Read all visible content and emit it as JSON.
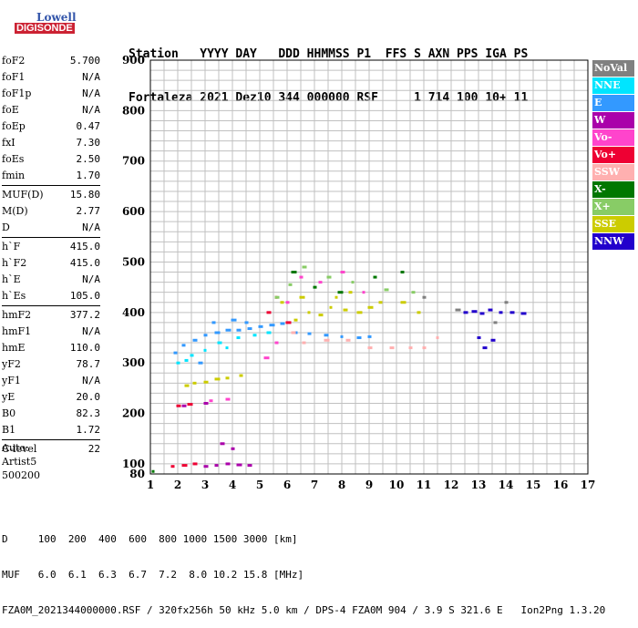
{
  "logo": {
    "line1": "Lowell",
    "line2": "DIGISONDE"
  },
  "header": {
    "row1": "Station   YYYY DAY   DDD HHMMSS P1  FFS S AXN PPS IGA PS",
    "row2": "Fortaleza 2021 Dez10 344 000000 RSF     1 714 100 10+ 11"
  },
  "params": [
    [
      {
        "label": "foF2",
        "value": "5.700"
      },
      {
        "label": "foF1",
        "value": "N/A"
      },
      {
        "label": "foF1p",
        "value": "N/A"
      },
      {
        "label": "foE",
        "value": "N/A"
      },
      {
        "label": "foEp",
        "value": "0.47"
      },
      {
        "label": "fxI",
        "value": "7.30"
      },
      {
        "label": "foEs",
        "value": "2.50"
      },
      {
        "label": "fmin",
        "value": "1.70"
      }
    ],
    [
      {
        "label": "MUF(D)",
        "value": "15.80"
      },
      {
        "label": "M(D)",
        "value": "2.77"
      },
      {
        "label": "D",
        "value": "N/A"
      }
    ],
    [
      {
        "label": "h`F",
        "value": "415.0"
      },
      {
        "label": "h`F2",
        "value": "415.0"
      },
      {
        "label": "h`E",
        "value": "N/A"
      },
      {
        "label": "h`Es",
        "value": "105.0"
      }
    ],
    [
      {
        "label": "hmF2",
        "value": "377.2"
      },
      {
        "label": "hmF1",
        "value": "N/A"
      },
      {
        "label": "hmE",
        "value": "110.0"
      },
      {
        "label": "yF2",
        "value": "78.7"
      },
      {
        "label": "yF1",
        "value": "N/A"
      },
      {
        "label": "yE",
        "value": "20.0"
      },
      {
        "label": "B0",
        "value": "82.3"
      },
      {
        "label": "B1",
        "value": "1.72"
      }
    ],
    [
      {
        "label": "C-level",
        "value": "22"
      }
    ]
  ],
  "auto": {
    "line1": "Auto:",
    "line2": "Artist5",
    "line3": "500200"
  },
  "footer": {
    "line1": "D     100  200  400  600  800 1000 1500 3000 [km]",
    "line2": "MUF   6.0  6.1  6.3  6.7  7.2  8.0 10.2 15.8 [MHz]",
    "line3": "FZA0M_2021344000000.RSF / 320fx256h 50 kHz 5.0 km / DPS-4 FZA0M 904 / 3.9 S 321.6 E   Ion2Png 1.3.20"
  },
  "legend": [
    {
      "label": "NoVal",
      "color": "#808080"
    },
    {
      "label": "NNE",
      "color": "#00e5ff"
    },
    {
      "label": "E",
      "color": "#3399ff"
    },
    {
      "label": "W",
      "color": "#aa00aa"
    },
    {
      "label": "Vo-",
      "color": "#ff44cc"
    },
    {
      "label": "Vo+",
      "color": "#ee0033"
    },
    {
      "label": "SSW",
      "color": "#ffb0b0"
    },
    {
      "label": "X-",
      "color": "#007700"
    },
    {
      "label": "X+",
      "color": "#88cc66"
    },
    {
      "label": "SSE",
      "color": "#cccc00"
    },
    {
      "label": "NNW",
      "color": "#2200cc"
    }
  ],
  "chart_data": {
    "type": "scatter",
    "title": "",
    "xlabel": "",
    "ylabel": "",
    "xlim": [
      1,
      17
    ],
    "ylim": [
      80,
      900
    ],
    "x_ticks": [
      "1",
      "2",
      "3",
      "4",
      "5",
      "6",
      "7",
      "8",
      "9",
      "10",
      "11",
      "12",
      "13",
      "14",
      "15",
      "16",
      "17"
    ],
    "y_ticks": [
      "100",
      "200",
      "300",
      "400",
      "500",
      "600",
      "700",
      "800",
      "900"
    ],
    "grid": true,
    "legend_position": "right",
    "series": [
      {
        "name": "E",
        "color": "#3399ff",
        "points": [
          [
            1.9,
            320
          ],
          [
            2.2,
            335
          ],
          [
            2.6,
            345
          ],
          [
            3.0,
            355
          ],
          [
            3.4,
            360
          ],
          [
            3.8,
            365
          ],
          [
            4.2,
            365
          ],
          [
            4.6,
            368
          ],
          [
            5.0,
            372
          ],
          [
            5.4,
            375
          ],
          [
            5.8,
            378
          ],
          [
            6.3,
            360
          ],
          [
            6.8,
            358
          ],
          [
            7.4,
            355
          ],
          [
            8.0,
            352
          ],
          [
            8.6,
            350
          ],
          [
            9.0,
            352
          ],
          [
            3.3,
            380
          ],
          [
            4.0,
            385
          ],
          [
            4.5,
            380
          ],
          [
            2.8,
            300
          ]
        ]
      },
      {
        "name": "NNE",
        "color": "#00e5ff",
        "points": [
          [
            2.0,
            300
          ],
          [
            2.5,
            315
          ],
          [
            3.0,
            325
          ],
          [
            3.5,
            340
          ],
          [
            4.2,
            350
          ],
          [
            4.8,
            355
          ],
          [
            5.3,
            360
          ],
          [
            3.8,
            330
          ],
          [
            2.3,
            305
          ]
        ]
      },
      {
        "name": "SSE",
        "color": "#cccc00",
        "points": [
          [
            2.3,
            255
          ],
          [
            2.6,
            260
          ],
          [
            3.0,
            262
          ],
          [
            3.4,
            268
          ],
          [
            3.8,
            270
          ],
          [
            4.3,
            275
          ],
          [
            6.3,
            385
          ],
          [
            6.8,
            400
          ],
          [
            7.2,
            395
          ],
          [
            7.6,
            410
          ],
          [
            8.1,
            405
          ],
          [
            8.6,
            400
          ],
          [
            9.0,
            410
          ],
          [
            9.4,
            420
          ],
          [
            10.2,
            420
          ],
          [
            10.8,
            400
          ],
          [
            6.5,
            430
          ],
          [
            7.8,
            430
          ],
          [
            8.3,
            440
          ],
          [
            5.8,
            420
          ]
        ]
      },
      {
        "name": "W",
        "color": "#aa00aa",
        "points": [
          [
            3.0,
            95
          ],
          [
            3.4,
            97
          ],
          [
            3.8,
            100
          ],
          [
            4.2,
            98
          ],
          [
            4.6,
            97
          ],
          [
            4.0,
            130
          ],
          [
            3.6,
            140
          ],
          [
            3.0,
            220
          ],
          [
            2.2,
            215
          ]
        ]
      },
      {
        "name": "Vo-",
        "color": "#ff44cc",
        "points": [
          [
            3.2,
            225
          ],
          [
            3.8,
            228
          ],
          [
            5.2,
            310
          ],
          [
            5.6,
            340
          ],
          [
            6.0,
            420
          ],
          [
            6.5,
            470
          ],
          [
            7.2,
            460
          ],
          [
            8.0,
            480
          ],
          [
            8.8,
            440
          ]
        ]
      },
      {
        "name": "Vo+",
        "color": "#ee0033",
        "points": [
          [
            1.8,
            95
          ],
          [
            2.2,
            97
          ],
          [
            2.6,
            100
          ],
          [
            2.0,
            215
          ],
          [
            2.4,
            218
          ],
          [
            5.3,
            400
          ],
          [
            5.6,
            430
          ],
          [
            6.0,
            380
          ]
        ]
      },
      {
        "name": "SSW",
        "color": "#ffb0b0",
        "points": [
          [
            6.6,
            340
          ],
          [
            7.4,
            345
          ],
          [
            8.2,
            345
          ],
          [
            9.0,
            330
          ],
          [
            9.8,
            330
          ],
          [
            10.5,
            330
          ],
          [
            11.0,
            330
          ],
          [
            11.5,
            350
          ],
          [
            6.2,
            360
          ]
        ]
      },
      {
        "name": "NNW",
        "color": "#2200cc",
        "points": [
          [
            12.5,
            400
          ],
          [
            12.8,
            402
          ],
          [
            13.1,
            398
          ],
          [
            13.4,
            405
          ],
          [
            13.8,
            400
          ],
          [
            14.2,
            400
          ],
          [
            14.6,
            398
          ],
          [
            13.0,
            350
          ],
          [
            13.5,
            345
          ],
          [
            13.2,
            330
          ]
        ]
      },
      {
        "name": "X-",
        "color": "#007700",
        "points": [
          [
            1.1,
            85
          ],
          [
            6.2,
            480
          ],
          [
            7.0,
            450
          ],
          [
            7.9,
            440
          ],
          [
            9.2,
            470
          ],
          [
            10.2,
            480
          ]
        ]
      },
      {
        "name": "X+",
        "color": "#88cc66",
        "points": [
          [
            5.6,
            430
          ],
          [
            6.1,
            455
          ],
          [
            6.6,
            490
          ],
          [
            7.5,
            470
          ],
          [
            8.4,
            460
          ],
          [
            9.6,
            445
          ],
          [
            10.6,
            440
          ]
        ]
      },
      {
        "name": "NoVal",
        "color": "#808080",
        "points": [
          [
            12.2,
            405
          ],
          [
            14.0,
            420
          ],
          [
            13.6,
            380
          ],
          [
            11.0,
            430
          ]
        ]
      }
    ]
  }
}
